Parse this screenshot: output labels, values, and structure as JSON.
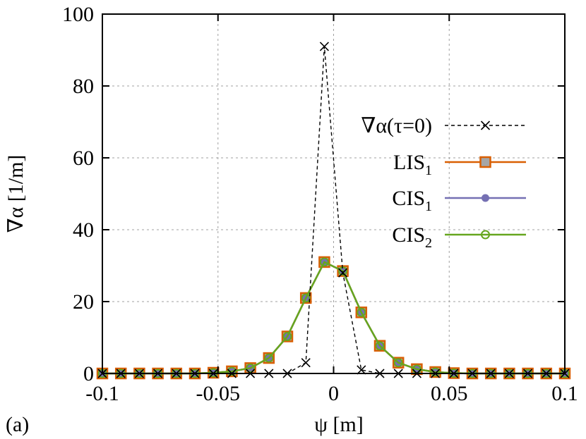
{
  "panel_label": "(a)",
  "chart_data": {
    "type": "line",
    "title": "",
    "xlabel": "ψ [m]",
    "ylabel": "∇α [1/m]",
    "xlim": [
      -0.1,
      0.1
    ],
    "ylim": [
      0,
      100
    ],
    "xticks": [
      -0.1,
      -0.05,
      0,
      0.05,
      0.1
    ],
    "xtick_labels": [
      "-0.1",
      "-0.05",
      "0",
      "0.05",
      "0.1"
    ],
    "yticks": [
      0,
      20,
      40,
      60,
      80,
      100
    ],
    "ytick_labels": [
      "0",
      "20",
      "40",
      "60",
      "80",
      "100"
    ],
    "grid": true,
    "legend_position": "right",
    "series": [
      {
        "name": "∇α(τ=0)",
        "legend_main": "∇α(τ=0)",
        "legend_sub": "",
        "color": "#000000",
        "line": "dashed",
        "marker": "cross",
        "x": [
          -0.1,
          -0.092,
          -0.084,
          -0.076,
          -0.068,
          -0.06,
          -0.052,
          -0.044,
          -0.036,
          -0.028,
          -0.02,
          -0.012,
          -0.004,
          0.004,
          0.012,
          0.02,
          0.028,
          0.036,
          0.044,
          0.052,
          0.06,
          0.068,
          0.076,
          0.084,
          0.092,
          0.1
        ],
        "y": [
          0,
          0,
          0,
          0,
          0,
          0,
          0,
          0,
          0,
          0,
          0,
          3,
          91,
          28,
          1,
          0,
          0,
          0,
          0,
          0,
          0,
          0,
          0,
          0,
          0,
          0
        ]
      },
      {
        "name": "LIS1",
        "legend_main": "LIS",
        "legend_sub": "1",
        "color": "#d95f02",
        "line": "solid",
        "marker": "open-square",
        "x": [
          -0.1,
          -0.092,
          -0.084,
          -0.076,
          -0.068,
          -0.06,
          -0.052,
          -0.044,
          -0.036,
          -0.028,
          -0.02,
          -0.012,
          -0.004,
          0.004,
          0.012,
          0.02,
          0.028,
          0.036,
          0.044,
          0.052,
          0.06,
          0.068,
          0.076,
          0.084,
          0.092,
          0.1
        ],
        "y": [
          0,
          0,
          0,
          0,
          0,
          0,
          0.2,
          0.6,
          1.5,
          4.3,
          10.3,
          21,
          31,
          28.5,
          17,
          7.7,
          3,
          1.2,
          0.4,
          0.1,
          0,
          0,
          0,
          0,
          0,
          0
        ]
      },
      {
        "name": "CIS1",
        "legend_main": "CIS",
        "legend_sub": "1",
        "color": "#7570b3",
        "line": "solid",
        "marker": "filled-circle",
        "x": [
          -0.1,
          -0.092,
          -0.084,
          -0.076,
          -0.068,
          -0.06,
          -0.052,
          -0.044,
          -0.036,
          -0.028,
          -0.02,
          -0.012,
          -0.004,
          0.004,
          0.012,
          0.02,
          0.028,
          0.036,
          0.044,
          0.052,
          0.06,
          0.068,
          0.076,
          0.084,
          0.092,
          0.1
        ],
        "y": [
          0,
          0,
          0,
          0,
          0,
          0,
          0.2,
          0.6,
          1.5,
          4.3,
          10.3,
          21,
          31,
          28.5,
          17,
          7.7,
          3,
          1.2,
          0.4,
          0.1,
          0,
          0,
          0,
          0,
          0,
          0
        ]
      },
      {
        "name": "CIS2",
        "legend_main": "CIS",
        "legend_sub": "2",
        "color": "#66a61e",
        "line": "solid",
        "marker": "open-circle",
        "x": [
          -0.1,
          -0.092,
          -0.084,
          -0.076,
          -0.068,
          -0.06,
          -0.052,
          -0.044,
          -0.036,
          -0.028,
          -0.02,
          -0.012,
          -0.004,
          0.004,
          0.012,
          0.02,
          0.028,
          0.036,
          0.044,
          0.052,
          0.06,
          0.068,
          0.076,
          0.084,
          0.092,
          0.1
        ],
        "y": [
          0,
          0,
          0,
          0,
          0,
          0,
          0.2,
          0.6,
          1.5,
          4.3,
          10.3,
          21,
          31,
          28.5,
          17,
          7.7,
          3,
          1.2,
          0.4,
          0.1,
          0,
          0,
          0,
          0,
          0,
          0
        ]
      }
    ]
  }
}
